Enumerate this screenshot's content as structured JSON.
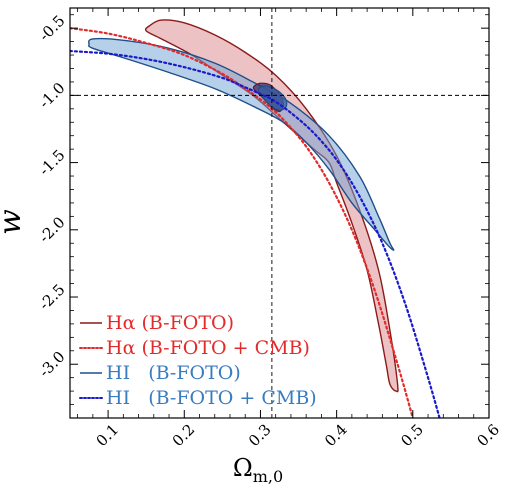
{
  "chart_data": {
    "type": "contour",
    "xlabel": "Ωm,0",
    "xlabel_main": "Ω",
    "xlabel_sub": "m,0",
    "ylabel": "w",
    "xlim": [
      0.05,
      0.6
    ],
    "ylim": [
      -3.4,
      -0.35
    ],
    "xticks": [
      0.1,
      0.2,
      0.3,
      0.4,
      0.5,
      0.6
    ],
    "xtick_labels": [
      "0.1",
      "0.2",
      "0.3",
      "0.4",
      "0.5",
      "0.6"
    ],
    "yticks": [
      -0.5,
      -1.0,
      -1.5,
      -2.0,
      -2.5,
      -3.0
    ],
    "ytick_labels": [
      "-0.5",
      "-1.0",
      "-1.5",
      "-2.0",
      "-2.5",
      "-3.0"
    ],
    "reference_lines": {
      "x": 0.315,
      "y": -1.0
    },
    "legend_position": "bottom-left",
    "colors": {
      "halpha": "#e8323c",
      "halpha_edge": "#8b1a1a",
      "halpha_fill": "#d9858a",
      "hi": "#3a7cc0",
      "hi_edge": "#1d4f8a",
      "hi_fill": "#6fa1d4",
      "halpha_cmb_line": "#e32b2b",
      "hi_cmb_line": "#1a1acc",
      "inner_dark": "#2b3f7a"
    },
    "series": [
      {
        "name": "Hα (B-FOTO)",
        "kind": "contour",
        "color": "#8b1a1a",
        "fill": "#d9858a",
        "x": [
          0.155,
          0.17,
          0.2,
          0.24,
          0.28,
          0.32,
          0.36,
          0.4,
          0.43,
          0.455,
          0.47,
          0.48,
          0.478,
          0.47,
          0.465,
          0.455,
          0.44,
          0.42,
          0.4,
          0.39,
          0.37,
          0.33,
          0.29,
          0.25,
          0.21,
          0.17,
          0.15
        ],
        "y": [
          -0.48,
          -0.44,
          -0.46,
          -0.55,
          -0.68,
          -0.85,
          -1.1,
          -1.45,
          -1.85,
          -2.3,
          -2.75,
          -3.15,
          -3.2,
          -3.15,
          -3.0,
          -2.7,
          -2.3,
          -1.95,
          -1.65,
          -1.5,
          -1.4,
          -1.2,
          -1.0,
          -0.85,
          -0.7,
          -0.58,
          -0.52
        ]
      },
      {
        "name": "Hα (B-FOTO + CMB)",
        "kind": "line",
        "color": "#e32b2b",
        "x": [
          0.05,
          0.1,
          0.15,
          0.2,
          0.25,
          0.28,
          0.3,
          0.315,
          0.33,
          0.36,
          0.39,
          0.42,
          0.45,
          0.48,
          0.5
        ],
        "y": [
          -0.5,
          -0.54,
          -0.61,
          -0.7,
          -0.84,
          -0.95,
          -1.03,
          -1.1,
          -1.18,
          -1.38,
          -1.65,
          -2.0,
          -2.45,
          -3.0,
          -3.4
        ]
      },
      {
        "name": "HI (B-FOTO)",
        "kind": "contour",
        "color": "#1d4f8a",
        "fill": "#6fa1d4",
        "x": [
          0.075,
          0.08,
          0.12,
          0.18,
          0.24,
          0.29,
          0.34,
          0.39,
          0.43,
          0.455,
          0.47,
          0.475,
          0.468,
          0.45,
          0.42,
          0.39,
          0.36,
          0.33,
          0.29,
          0.24,
          0.18,
          0.12,
          0.08
        ],
        "y": [
          -0.62,
          -0.58,
          -0.59,
          -0.65,
          -0.76,
          -0.9,
          -1.06,
          -1.3,
          -1.6,
          -1.9,
          -2.1,
          -2.15,
          -2.12,
          -2.0,
          -1.8,
          -1.55,
          -1.35,
          -1.2,
          -1.08,
          -0.95,
          -0.83,
          -0.72,
          -0.65
        ]
      },
      {
        "name": "HI (B-FOTO + CMB)",
        "kind": "line",
        "color": "#1a1acc",
        "x": [
          0.05,
          0.1,
          0.15,
          0.2,
          0.25,
          0.28,
          0.3,
          0.315,
          0.34,
          0.37,
          0.4,
          0.43,
          0.46,
          0.49,
          0.52,
          0.54
        ],
        "y": [
          -0.67,
          -0.69,
          -0.73,
          -0.79,
          -0.87,
          -0.94,
          -0.99,
          -1.03,
          -1.13,
          -1.28,
          -1.48,
          -1.75,
          -2.1,
          -2.55,
          -3.1,
          -3.5
        ]
      }
    ],
    "inner_contours": [
      {
        "color": "#5a1f35",
        "fill": "#3d2c68",
        "x": [
          0.292,
          0.3,
          0.312,
          0.322,
          0.328,
          0.33,
          0.325,
          0.315,
          0.305,
          0.296,
          0.291
        ],
        "y": [
          -0.93,
          -0.91,
          -0.92,
          -0.97,
          -1.02,
          -1.08,
          -1.12,
          -1.09,
          -1.03,
          -0.98,
          -0.95
        ]
      },
      {
        "color": "#1d4f8a",
        "fill": "#3a5fa6",
        "x": [
          0.298,
          0.305,
          0.318,
          0.328,
          0.334,
          0.333,
          0.325,
          0.314,
          0.304,
          0.298
        ],
        "y": [
          -0.95,
          -0.93,
          -0.95,
          -0.99,
          -1.04,
          -1.09,
          -1.11,
          -1.08,
          -1.02,
          -0.98
        ]
      }
    ],
    "legend": [
      {
        "label": "Hα (B-FOTO)",
        "color": "#e32b2b",
        "line_color": "#8b1a1a",
        "style": "solid"
      },
      {
        "label": "Hα (B-FOTO + CMB)",
        "color": "#e32b2b",
        "line_color": "#e32b2b",
        "style": "dotted"
      },
      {
        "label": "HI   (B-FOTO)",
        "color": "#3a7cc0",
        "line_color": "#1d4f8a",
        "style": "solid"
      },
      {
        "label": "HI   (B-FOTO + CMB)",
        "color": "#3a7cc0",
        "line_color": "#1a1acc",
        "style": "dotted"
      }
    ]
  }
}
